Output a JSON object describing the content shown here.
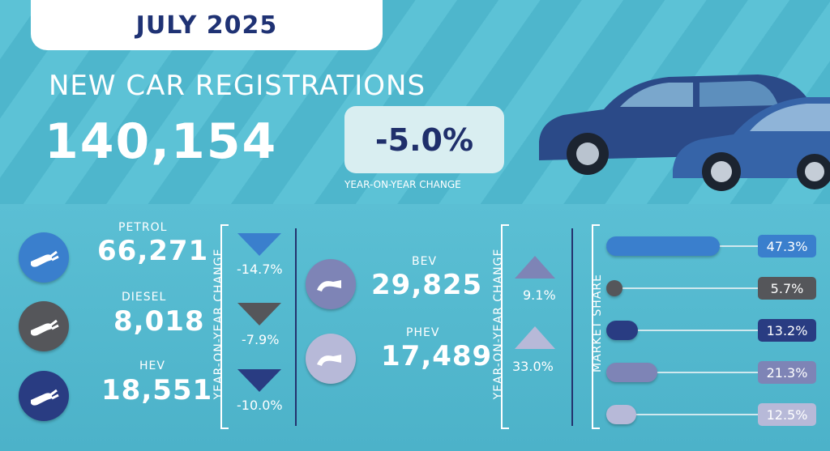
{
  "header": {
    "month": "JULY 2025",
    "title": "NEW CAR REGISTRATIONS",
    "total": "140,154",
    "yoy_value": "-5.0%",
    "yoy_label": "YEAR-ON-YEAR CHANGE"
  },
  "fuels_left": [
    {
      "name": "PETROL",
      "value": "66,271",
      "change": "-14.7%",
      "direction": "down",
      "color": "#3a7fcd"
    },
    {
      "name": "DIESEL",
      "value": "8,018",
      "change": "-7.9%",
      "direction": "down",
      "color": "#55565a"
    },
    {
      "name": "HEV",
      "value": "18,551",
      "change": "-10.0%",
      "direction": "down",
      "color": "#293c82"
    }
  ],
  "fuels_mid": [
    {
      "name": "BEV",
      "value": "29,825",
      "change": "9.1%",
      "direction": "up",
      "color": "#7e84b6"
    },
    {
      "name": "PHEV",
      "value": "17,489",
      "change": "33.0%",
      "direction": "up",
      "color": "#b7b9d8"
    }
  ],
  "axis_labels": {
    "yoy_left": "YEAR-ON-YEAR CHANGE",
    "yoy_mid": "YEAR-ON-YEAR CHANGE",
    "market_share": "MARKET SHARE"
  },
  "market_share": [
    {
      "fuel": "PETROL",
      "value": 47.3,
      "label": "47.3%",
      "color": "#3a7fcd"
    },
    {
      "fuel": "DIESEL",
      "value": 5.7,
      "label": "5.7%",
      "color": "#55565a"
    },
    {
      "fuel": "HEV",
      "value": 13.2,
      "label": "13.2%",
      "color": "#293c82"
    },
    {
      "fuel": "BEV",
      "value": 21.3,
      "label": "21.3%",
      "color": "#7e84b6"
    },
    {
      "fuel": "PHEV",
      "value": 12.5,
      "label": "12.5%",
      "color": "#b7b9d8"
    }
  ],
  "colors": {
    "navy": "#1f3274",
    "accent": "#5cc2d6"
  }
}
